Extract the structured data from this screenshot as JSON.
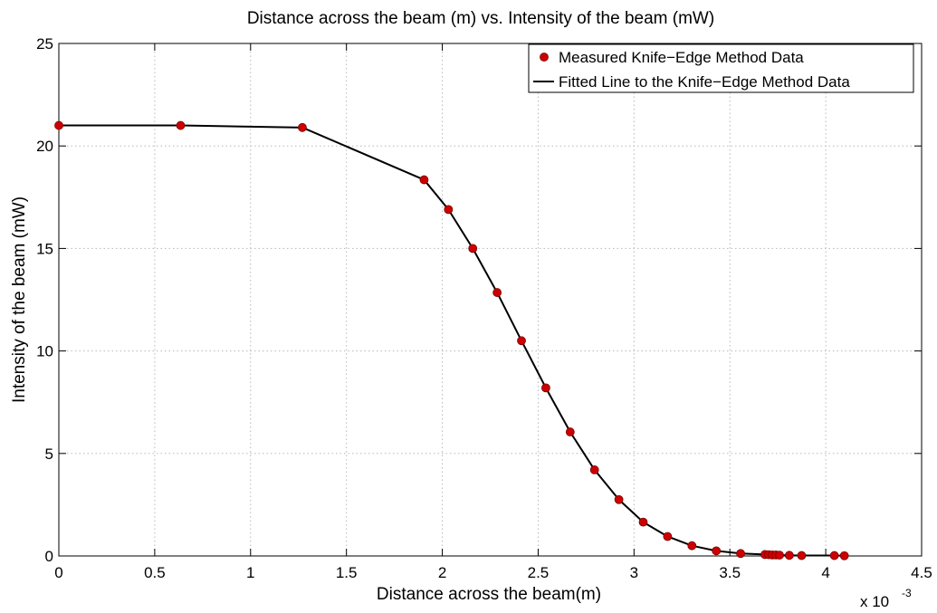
{
  "chart_data": {
    "type": "line",
    "title": "Distance across the beam (m) vs. Intensity of the beam (mW)",
    "xlabel": "Distance across the beam(m)",
    "ylabel": "Intensity of the beam (mW)",
    "x_multiplier": {
      "base": "x 10",
      "exponent": "-3"
    },
    "xlim": [
      0,
      0.0045
    ],
    "ylim": [
      0,
      25
    ],
    "xticks": [
      0,
      0.0005,
      0.001,
      0.0015,
      0.002,
      0.0025,
      0.003,
      0.0035,
      0.004,
      0.0045
    ],
    "xtick_labels": [
      "0",
      "0.5",
      "1",
      "1.5",
      "2",
      "2.5",
      "3",
      "3.5",
      "4",
      "4.5"
    ],
    "yticks": [
      0,
      5,
      10,
      15,
      20,
      25
    ],
    "ytick_labels": [
      "0",
      "5",
      "10",
      "15",
      "20",
      "25"
    ],
    "grid": true,
    "legend_position": "top-right",
    "series": [
      {
        "name": "Measured Knife−Edge Method Data",
        "style": "markers",
        "color": "#cc0000",
        "x": [
          0,
          0.000635,
          0.00127,
          0.001905,
          0.002032,
          0.002159,
          0.002286,
          0.002413,
          0.00254,
          0.002667,
          0.002794,
          0.002921,
          0.003048,
          0.003175,
          0.003302,
          0.003429,
          0.003556,
          0.003683,
          0.003702,
          0.003721,
          0.00374,
          0.003759,
          0.00381,
          0.003874,
          0.004045,
          0.004097
        ],
        "y": [
          21.0,
          21.0,
          20.9,
          18.35,
          16.9,
          15.0,
          12.85,
          10.5,
          8.2,
          6.05,
          4.2,
          2.75,
          1.65,
          0.95,
          0.5,
          0.25,
          0.12,
          0.07,
          0.06,
          0.05,
          0.05,
          0.04,
          0.03,
          0.02,
          0.02,
          0.01
        ]
      },
      {
        "name": "Fitted Line to the Knife−Edge Method Data",
        "style": "line",
        "color": "#000000",
        "x": [
          0,
          0.000635,
          0.00127,
          0.001905,
          0.002032,
          0.002159,
          0.002286,
          0.002413,
          0.00254,
          0.002667,
          0.002794,
          0.002921,
          0.003048,
          0.003175,
          0.003302,
          0.003429,
          0.003556,
          0.003683,
          0.003702,
          0.003721,
          0.00374,
          0.003759,
          0.00381,
          0.003874,
          0.004045,
          0.004097
        ],
        "y": [
          21.0,
          21.0,
          20.9,
          18.35,
          16.9,
          15.0,
          12.85,
          10.5,
          8.2,
          6.05,
          4.2,
          2.75,
          1.65,
          0.95,
          0.5,
          0.25,
          0.12,
          0.07,
          0.06,
          0.05,
          0.05,
          0.04,
          0.03,
          0.02,
          0.02,
          0.01
        ]
      }
    ]
  }
}
